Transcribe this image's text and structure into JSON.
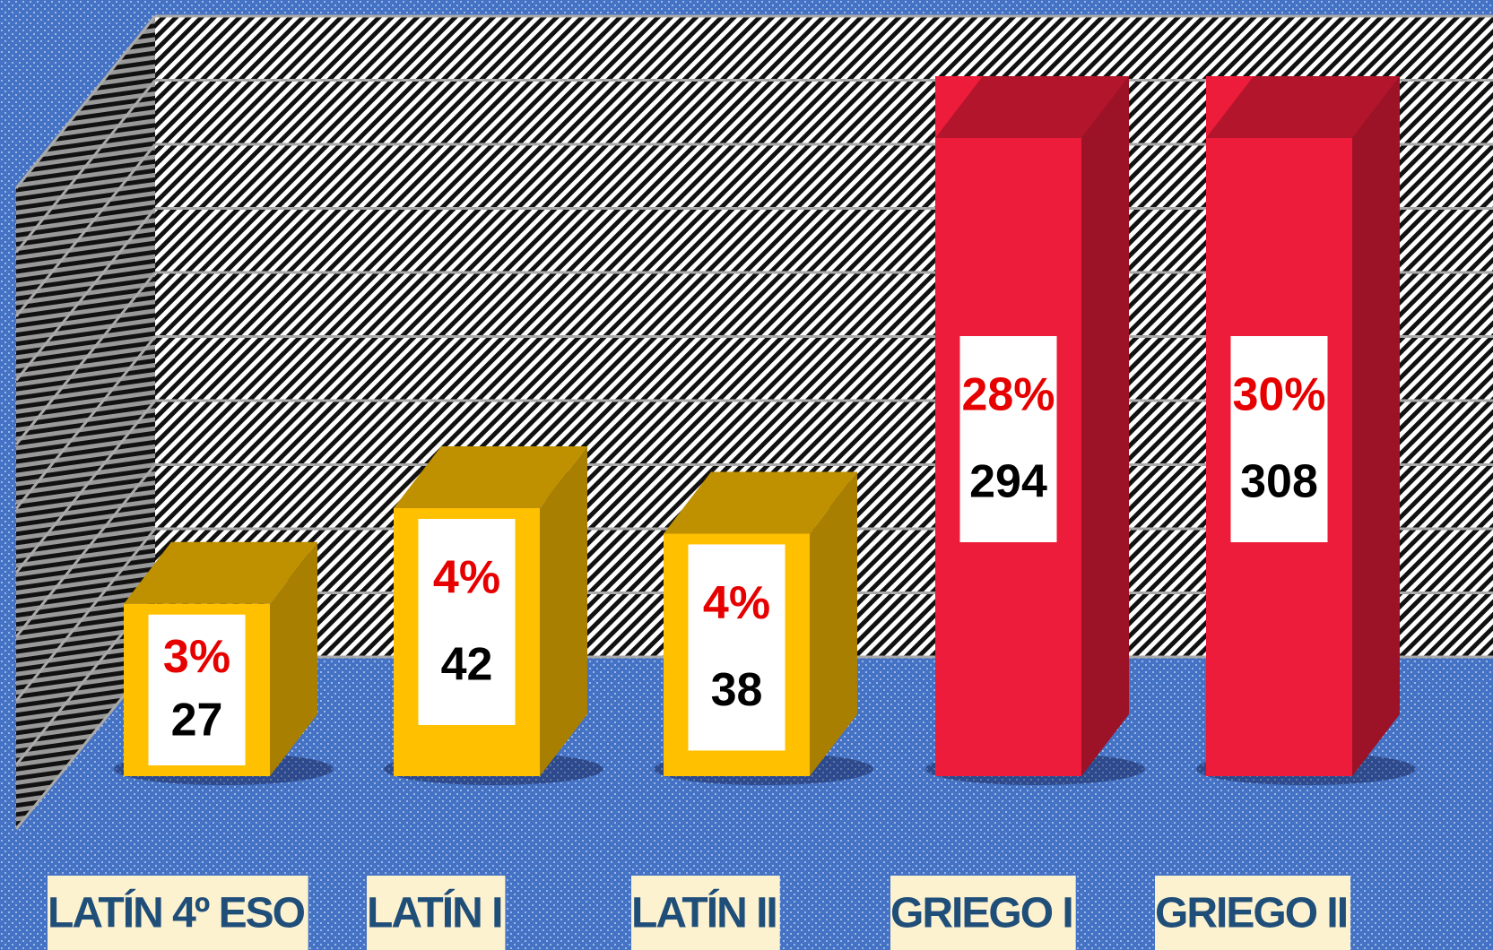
{
  "chart_data": {
    "type": "bar3d",
    "categories": [
      "LATÍN 4º ESO",
      "LATÍN I",
      "LATÍN II",
      "GRIEGO I",
      "GRIEGO II"
    ],
    "values": [
      27,
      42,
      38,
      294,
      308
    ],
    "share_labels": [
      "3%",
      "4%",
      "4%",
      "28%",
      "30%"
    ],
    "colors": [
      "#ffc000",
      "#ffc000",
      "#ffc000",
      "#ed1c3a",
      "#ed1c3a"
    ],
    "ylim": [
      0,
      100
    ],
    "gridlines": [
      0,
      10,
      20,
      30,
      40,
      50,
      60,
      70,
      80,
      90,
      100
    ],
    "grid": true
  }
}
